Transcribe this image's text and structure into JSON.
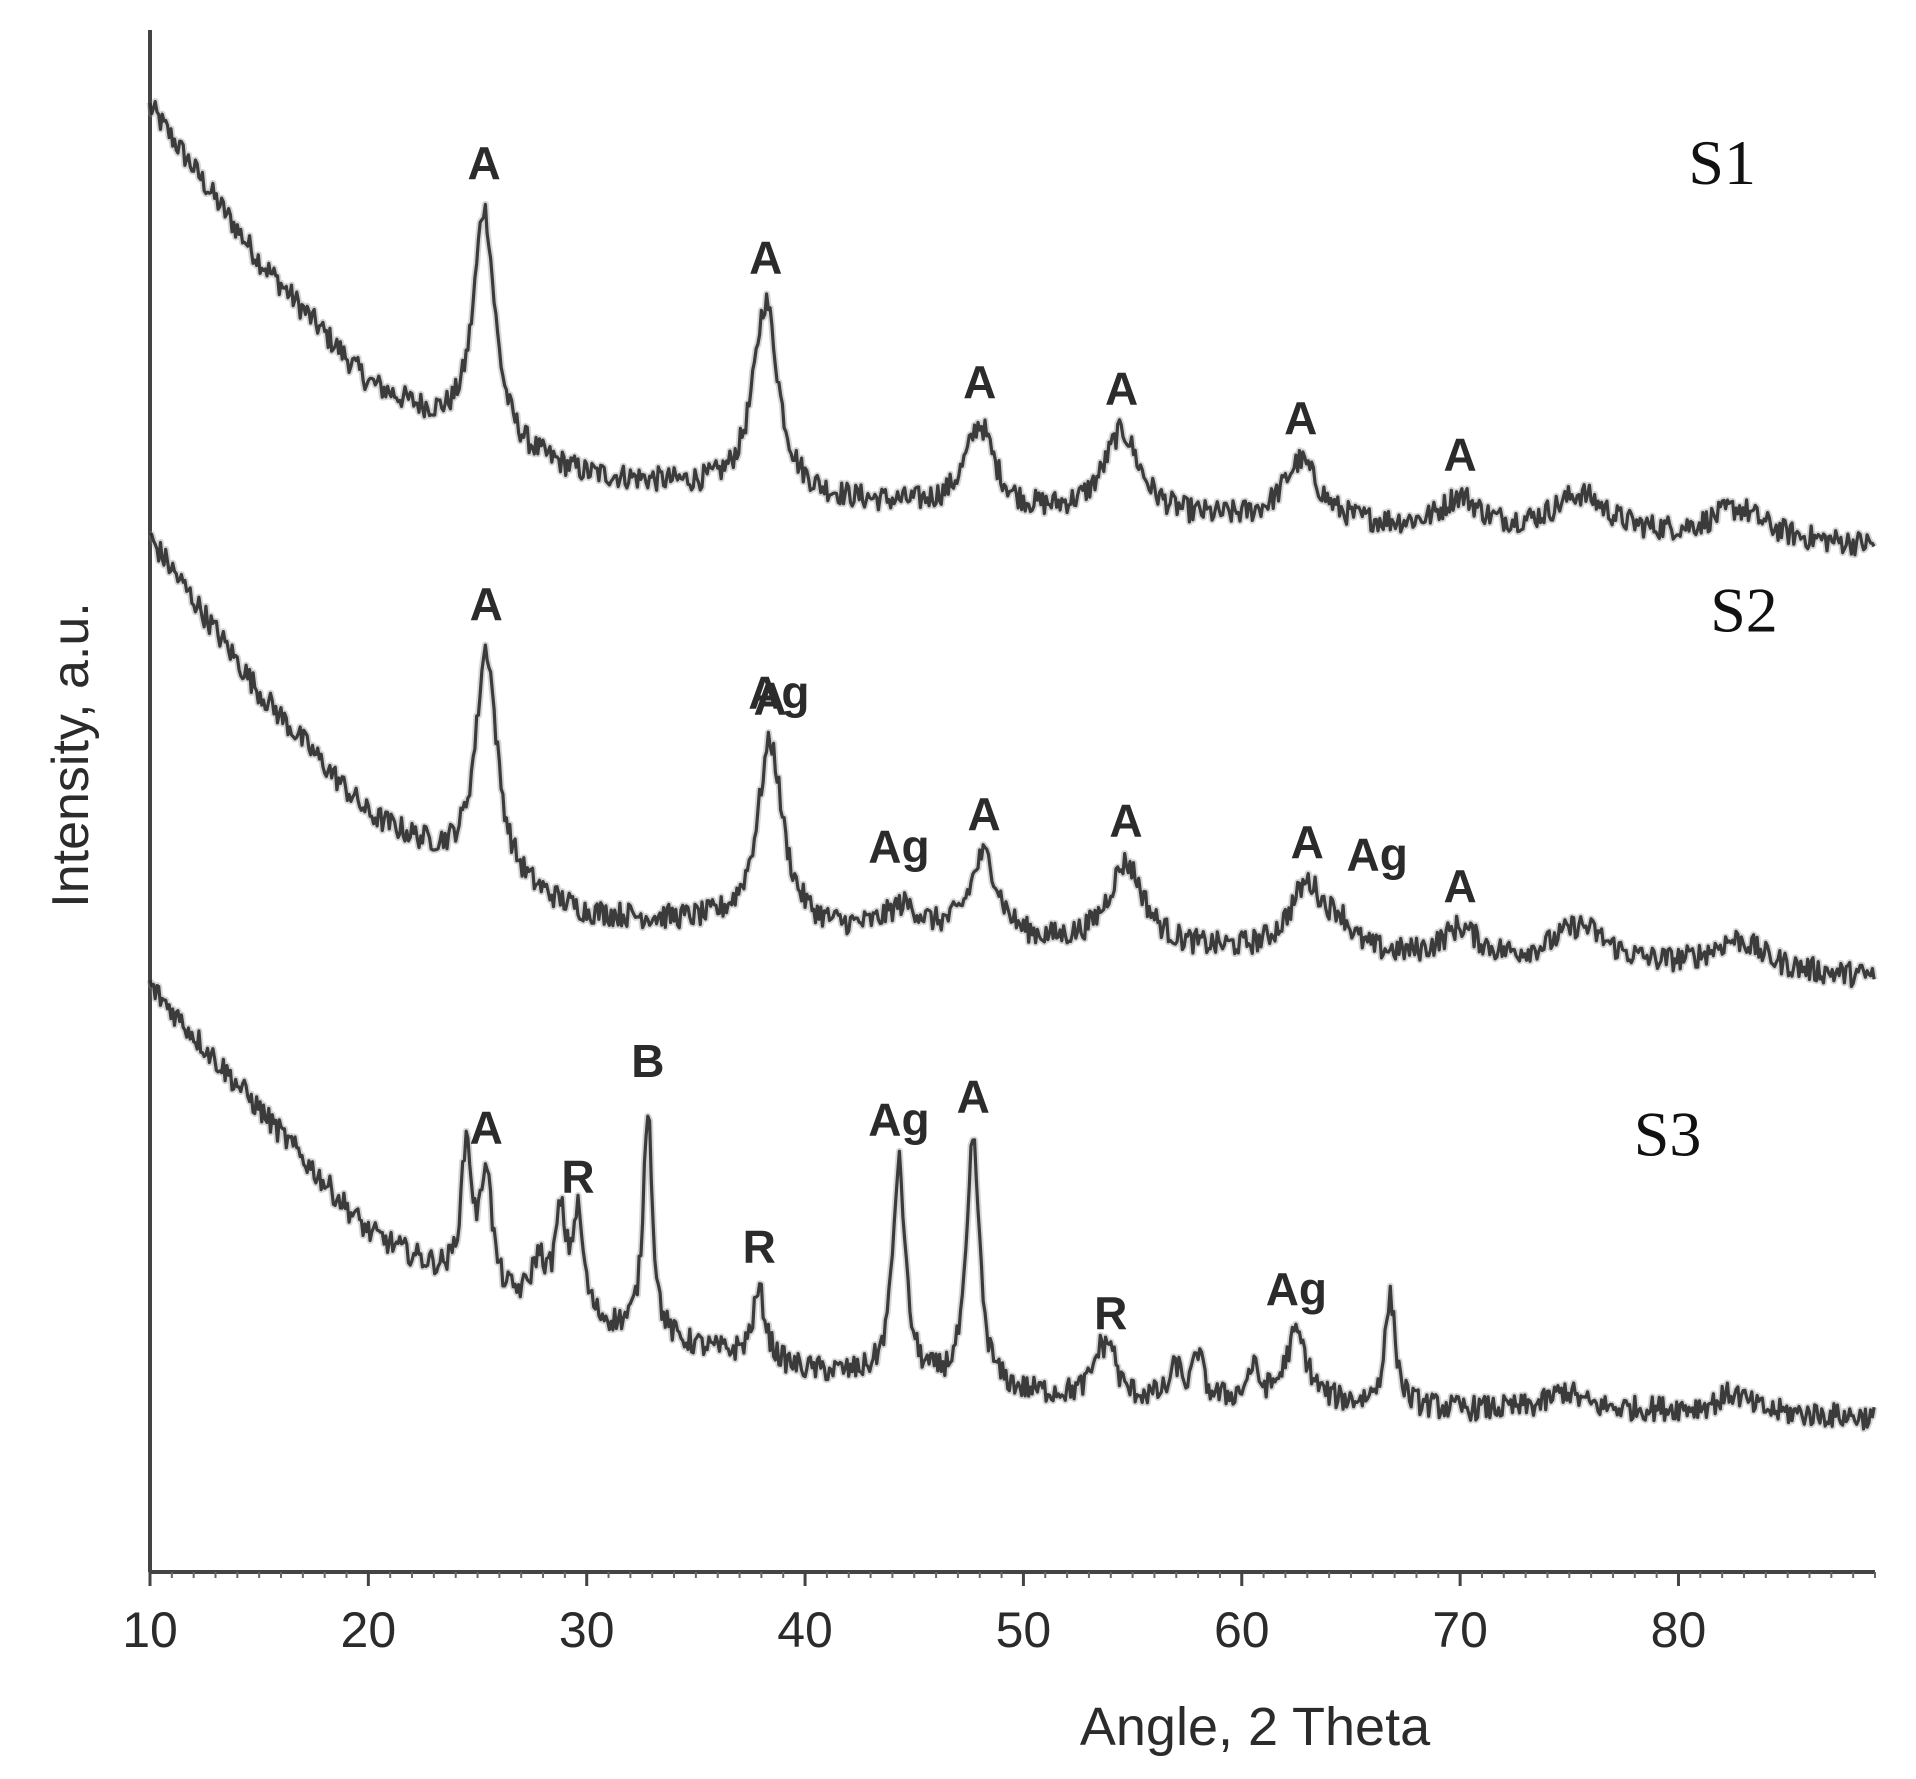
{
  "chart_data": {
    "type": "line",
    "title": "",
    "xlabel": "Angle, 2 Theta",
    "ylabel": "Intensity, a.u.",
    "xlim": [
      10,
      89
    ],
    "ylim": [
      0,
      100
    ],
    "x_ticks": [
      10,
      20,
      30,
      40,
      50,
      60,
      70,
      80
    ],
    "y_ticks": [],
    "grid": false,
    "legend": "none",
    "series": [
      {
        "name": "S1",
        "label_at": [
          82,
          90
        ],
        "baseline": [
          [
            10,
            95
          ],
          [
            15,
            85
          ],
          [
            20,
            77
          ],
          [
            25,
            73
          ],
          [
            30,
            71
          ],
          [
            40,
            69.5
          ],
          [
            50,
            68.5
          ],
          [
            60,
            68
          ],
          [
            70,
            67.5
          ],
          [
            80,
            67
          ],
          [
            89,
            66.5
          ]
        ],
        "peaks": [
          {
            "x": 25.3,
            "height": 15.5,
            "width": 0.6,
            "label": "A"
          },
          {
            "x": 38.2,
            "height": 12.5,
            "width": 0.7,
            "label": "A"
          },
          {
            "x": 48.0,
            "height": 5.5,
            "width": 0.8,
            "label": "A"
          },
          {
            "x": 54.5,
            "height": 5.5,
            "width": 1.0,
            "label": "A"
          },
          {
            "x": 62.7,
            "height": 4.0,
            "width": 1.0,
            "label": "A"
          },
          {
            "x": 70.0,
            "height": 2.0,
            "width": 1.0,
            "label": "A"
          },
          {
            "x": 75.5,
            "height": 2.5,
            "width": 1.5,
            "label": ""
          },
          {
            "x": 82.7,
            "height": 2.0,
            "width": 1.5,
            "label": ""
          }
        ]
      },
      {
        "name": "S2",
        "label_at": [
          83,
          61
        ],
        "baseline": [
          [
            10,
            67
          ],
          [
            15,
            57
          ],
          [
            20,
            49
          ],
          [
            25,
            45
          ],
          [
            30,
            42.5
          ],
          [
            40,
            41.5
          ],
          [
            50,
            40.5
          ],
          [
            60,
            40
          ],
          [
            70,
            39.5
          ],
          [
            80,
            39
          ],
          [
            89,
            38.5
          ]
        ],
        "peaks": [
          {
            "x": 25.4,
            "height": 15.0,
            "width": 0.6,
            "label": "A"
          },
          {
            "x": 38.4,
            "height": 12.0,
            "width": 0.7,
            "label": "A"
          },
          {
            "x": 44.5,
            "height": 1.8,
            "width": 1.0,
            "label": ""
          },
          {
            "x": 48.2,
            "height": 5.5,
            "width": 0.8,
            "label": "A"
          },
          {
            "x": 54.7,
            "height": 5.5,
            "width": 1.0,
            "label": "A"
          },
          {
            "x": 63.0,
            "height": 4.5,
            "width": 1.0,
            "label": "A"
          },
          {
            "x": 64.5,
            "height": 1.5,
            "width": 0.6,
            "label": ""
          },
          {
            "x": 70.0,
            "height": 2.0,
            "width": 1.0,
            "label": "A"
          },
          {
            "x": 75.5,
            "height": 2.5,
            "width": 1.5,
            "label": ""
          },
          {
            "x": 82.7,
            "height": 2.0,
            "width": 1.5,
            "label": ""
          }
        ],
        "annotations": [
          {
            "x": 38.8,
            "y": 56,
            "text": "Ag"
          },
          {
            "x": 44.3,
            "y": 46,
            "text": "Ag"
          },
          {
            "x": 66.2,
            "y": 45.5,
            "text": "Ag"
          }
        ]
      },
      {
        "name": "S3",
        "label_at": [
          79.5,
          27
        ],
        "baseline": [
          [
            10,
            38
          ],
          [
            15,
            30
          ],
          [
            20,
            22
          ],
          [
            25,
            18
          ],
          [
            30,
            16
          ],
          [
            40,
            13
          ],
          [
            50,
            11.5
          ],
          [
            60,
            11
          ],
          [
            70,
            10.5
          ],
          [
            80,
            10.5
          ],
          [
            89,
            10
          ]
        ],
        "peaks": [
          {
            "x": 24.5,
            "height": 9.0,
            "width": 0.3,
            "label": ""
          },
          {
            "x": 25.4,
            "height": 8.0,
            "width": 0.3,
            "label": "A"
          },
          {
            "x": 27.8,
            "height": 3.0,
            "width": 0.4,
            "label": ""
          },
          {
            "x": 28.8,
            "height": 6.0,
            "width": 0.3,
            "label": ""
          },
          {
            "x": 29.6,
            "height": 6.5,
            "width": 0.3,
            "label": "R"
          },
          {
            "x": 32.8,
            "height": 15.0,
            "width": 0.25,
            "label": "B"
          },
          {
            "x": 37.9,
            "height": 4.5,
            "width": 0.35,
            "label": "R"
          },
          {
            "x": 44.3,
            "height": 14.0,
            "width": 0.35,
            "label": "Ag"
          },
          {
            "x": 47.7,
            "height": 16.0,
            "width": 0.35,
            "label": "A"
          },
          {
            "x": 53.5,
            "height": 2.5,
            "width": 0.4,
            "label": ""
          },
          {
            "x": 54.0,
            "height": 2.5,
            "width": 0.3,
            "label": "R"
          },
          {
            "x": 57.0,
            "height": 2.0,
            "width": 0.3,
            "label": ""
          },
          {
            "x": 58.0,
            "height": 3.0,
            "width": 0.25,
            "label": ""
          },
          {
            "x": 60.5,
            "height": 2.0,
            "width": 0.3,
            "label": ""
          },
          {
            "x": 62.5,
            "height": 4.5,
            "width": 0.6,
            "label": "Ag"
          },
          {
            "x": 66.8,
            "height": 7.0,
            "width": 0.3,
            "label": ""
          },
          {
            "x": 74.8,
            "height": 1.2,
            "width": 0.8,
            "label": ""
          },
          {
            "x": 82.5,
            "height": 1.2,
            "width": 0.8,
            "label": ""
          }
        ]
      }
    ]
  }
}
